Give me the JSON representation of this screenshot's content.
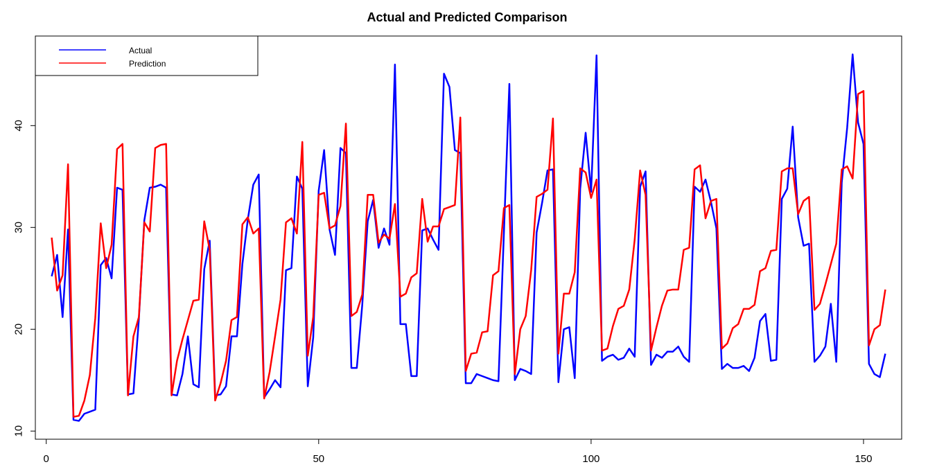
{
  "chart_data": {
    "type": "line",
    "title": "Actual and Predicted Comparison",
    "xlabel": "",
    "ylabel": "",
    "xlim": [
      -2,
      157
    ],
    "ylim": [
      9.2,
      48.8
    ],
    "x_ticks": [
      0,
      50,
      100,
      150
    ],
    "y_ticks": [
      10,
      20,
      30,
      40
    ],
    "grid": false,
    "legend_position": "top-left",
    "series": [
      {
        "name": "Actual",
        "color": "#0000FF",
        "values": [
          25.2,
          27.3,
          21.2,
          29.8,
          11.1,
          11.0,
          11.7,
          11.9,
          12.1,
          26.3,
          27.0,
          25.0,
          33.9,
          33.7,
          13.6,
          13.7,
          21.0,
          30.7,
          33.9,
          34.0,
          34.2,
          33.9,
          13.6,
          13.5,
          15.6,
          19.3,
          14.6,
          14.3,
          25.9,
          28.7,
          13.5,
          13.6,
          14.4,
          19.3,
          19.3,
          26.4,
          30.8,
          34.2,
          35.2,
          13.3,
          14.1,
          15.0,
          14.3,
          25.8,
          26.0,
          35.0,
          33.8,
          14.4,
          19.2,
          33.6,
          37.6,
          29.8,
          27.3,
          37.8,
          37.3,
          16.2,
          16.2,
          22.4,
          30.6,
          32.7,
          28.0,
          29.9,
          28.3,
          46.0,
          20.5,
          20.5,
          15.4,
          15.4,
          29.7,
          29.9,
          28.8,
          27.8,
          45.1,
          43.8,
          37.6,
          37.3,
          14.7,
          14.7,
          15.6,
          15.4,
          15.2,
          15.0,
          14.9,
          29.5,
          44.1,
          15.0,
          16.1,
          15.9,
          15.6,
          29.5,
          32.4,
          35.6,
          35.7,
          14.8,
          20.0,
          20.2,
          15.2,
          33.8,
          39.3,
          33.5,
          46.9,
          16.9,
          17.3,
          17.5,
          17.0,
          17.2,
          18.1,
          17.3,
          34.0,
          35.5,
          16.5,
          17.5,
          17.2,
          17.8,
          17.8,
          18.3,
          17.3,
          16.8,
          34.0,
          33.5,
          34.7,
          32.5,
          29.9,
          16.1,
          16.6,
          16.2,
          16.2,
          16.4,
          15.9,
          17.2,
          20.8,
          21.5,
          16.9,
          17.0,
          32.8,
          33.8,
          39.9,
          31.0,
          28.2,
          28.4,
          16.8,
          17.4,
          18.3,
          22.5,
          16.8,
          34.4,
          39.8,
          47.0,
          40.3,
          38.2,
          16.6,
          15.6,
          15.3,
          17.6
        ]
      },
      {
        "name": "Prediction",
        "color": "#FF0000",
        "values": [
          29.0,
          23.8,
          25.3,
          36.2,
          11.4,
          11.5,
          13.0,
          15.5,
          21.1,
          30.4,
          26.0,
          28.3,
          37.7,
          38.2,
          13.5,
          19.3,
          21.2,
          30.5,
          29.6,
          37.8,
          38.1,
          38.2,
          13.5,
          16.9,
          19.0,
          20.9,
          22.8,
          22.9,
          30.6,
          27.8,
          13.0,
          14.7,
          16.9,
          20.9,
          21.2,
          30.3,
          31.0,
          29.4,
          29.9,
          13.2,
          15.8,
          19.3,
          22.9,
          30.5,
          30.9,
          29.4,
          38.4,
          17.4,
          21.2,
          33.2,
          33.4,
          29.9,
          30.2,
          32.1,
          40.2,
          21.3,
          21.7,
          23.4,
          33.2,
          33.2,
          28.5,
          29.3,
          28.9,
          32.3,
          23.2,
          23.5,
          25.1,
          25.5,
          32.8,
          28.6,
          30.1,
          30.1,
          31.8,
          32.0,
          32.2,
          40.8,
          15.9,
          17.6,
          17.7,
          19.7,
          19.8,
          25.3,
          25.7,
          31.9,
          32.2,
          15.6,
          20.0,
          21.3,
          25.8,
          33.0,
          33.3,
          33.7,
          40.7,
          17.6,
          23.5,
          23.5,
          25.6,
          35.8,
          35.4,
          32.9,
          34.7,
          17.9,
          18.1,
          20.3,
          22.0,
          22.3,
          23.9,
          28.8,
          35.6,
          33.2,
          17.9,
          20.2,
          22.3,
          23.8,
          23.9,
          23.9,
          27.8,
          28.0,
          35.7,
          36.1,
          30.9,
          32.6,
          32.8,
          18.1,
          18.6,
          20.1,
          20.5,
          22.0,
          22.0,
          22.4,
          25.7,
          26.0,
          27.7,
          27.8,
          35.5,
          35.8,
          35.8,
          31.3,
          32.6,
          33.0,
          21.9,
          22.5,
          24.4,
          26.4,
          28.4,
          35.7,
          36.0,
          34.8,
          43.1,
          43.4,
          18.4,
          20.0,
          20.4,
          23.9
        ]
      }
    ]
  }
}
